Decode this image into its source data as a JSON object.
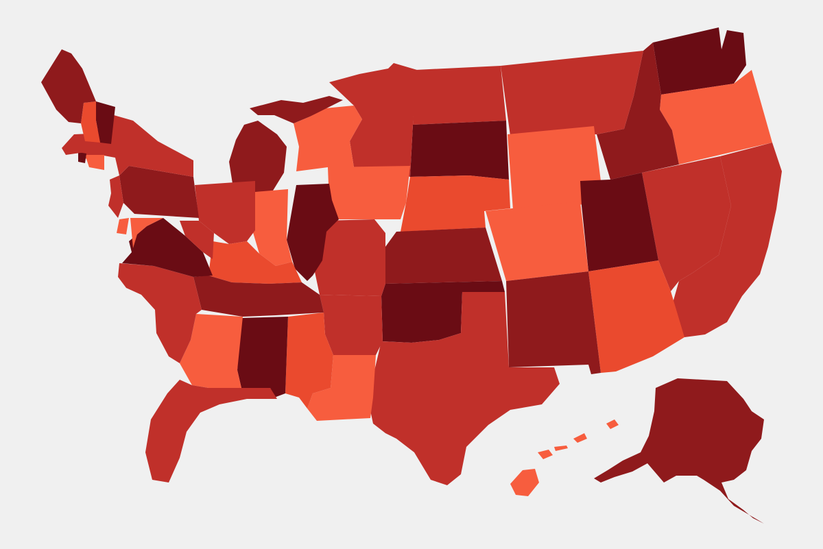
{
  "map": {
    "kind": "choropleth",
    "projection": "horizontally-mirrored",
    "background": "#f0f0f0",
    "palette": {
      "darkest": "#6a0c14",
      "dark": "#8f1a1c",
      "medium": "#c0302a",
      "light": "#ea4a2e",
      "lightest": "#f75d3e"
    },
    "regions": [
      {
        "id": "WA",
        "shade": "darkest"
      },
      {
        "id": "OR",
        "shade": "lightest"
      },
      {
        "id": "CA",
        "shade": "medium"
      },
      {
        "id": "NV",
        "shade": "medium"
      },
      {
        "id": "ID",
        "shade": "dark"
      },
      {
        "id": "MT",
        "shade": "medium"
      },
      {
        "id": "WY",
        "shade": "lightest"
      },
      {
        "id": "UT",
        "shade": "darkest"
      },
      {
        "id": "AZ",
        "shade": "light"
      },
      {
        "id": "CO",
        "shade": "lightest"
      },
      {
        "id": "NM",
        "shade": "dark"
      },
      {
        "id": "ND",
        "shade": "medium"
      },
      {
        "id": "SD",
        "shade": "darkest"
      },
      {
        "id": "NE",
        "shade": "light"
      },
      {
        "id": "KS",
        "shade": "dark"
      },
      {
        "id": "OK",
        "shade": "darkest"
      },
      {
        "id": "TX",
        "shade": "medium"
      },
      {
        "id": "MN",
        "shade": "medium"
      },
      {
        "id": "IA",
        "shade": "lightest"
      },
      {
        "id": "MO",
        "shade": "medium"
      },
      {
        "id": "AR",
        "shade": "medium"
      },
      {
        "id": "LA",
        "shade": "lightest"
      },
      {
        "id": "WI",
        "shade": "lightest"
      },
      {
        "id": "IL",
        "shade": "darkest"
      },
      {
        "id": "MI",
        "shade": "dark"
      },
      {
        "id": "IN",
        "shade": "lightest"
      },
      {
        "id": "OH",
        "shade": "medium"
      },
      {
        "id": "KY",
        "shade": "light"
      },
      {
        "id": "TN",
        "shade": "dark"
      },
      {
        "id": "MS",
        "shade": "light"
      },
      {
        "id": "AL",
        "shade": "darkest"
      },
      {
        "id": "GA",
        "shade": "lightest"
      },
      {
        "id": "FL",
        "shade": "medium"
      },
      {
        "id": "SC",
        "shade": "medium"
      },
      {
        "id": "NC",
        "shade": "medium"
      },
      {
        "id": "VA",
        "shade": "darkest"
      },
      {
        "id": "WV",
        "shade": "medium"
      },
      {
        "id": "PA",
        "shade": "dark"
      },
      {
        "id": "NY",
        "shade": "medium"
      },
      {
        "id": "NJ",
        "shade": "medium"
      },
      {
        "id": "DE",
        "shade": "lightest"
      },
      {
        "id": "MD",
        "shade": "lightest"
      },
      {
        "id": "CT",
        "shade": "lightest"
      },
      {
        "id": "RI",
        "shade": "darkest"
      },
      {
        "id": "MA",
        "shade": "medium"
      },
      {
        "id": "VT",
        "shade": "darkest"
      },
      {
        "id": "NH",
        "shade": "light"
      },
      {
        "id": "ME",
        "shade": "dark"
      },
      {
        "id": "AK",
        "shade": "dark"
      },
      {
        "id": "HI",
        "shade": "lightest"
      }
    ]
  }
}
